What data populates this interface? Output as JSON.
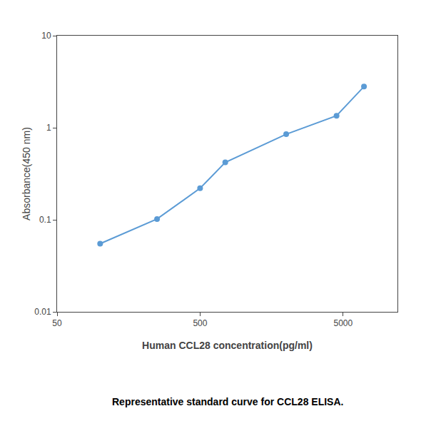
{
  "chart_data": {
    "type": "line",
    "x_label": "Human CCL28 concentration(pg/ml)",
    "y_label": "Absorbance(450 nm)",
    "annotations": [
      "Representative standard curve for CCL28 ELISA."
    ],
    "x": [
      100,
      250,
      500,
      750,
      2000,
      4500,
      7000
    ],
    "values": [
      0.055,
      0.102,
      0.22,
      0.42,
      0.85,
      1.35,
      2.8
    ],
    "color": "#5B9BD5",
    "marker": "circle",
    "line_style": "solid",
    "log": true,
    "xlim": [
      50,
      12000
    ],
    "ylim": [
      0.01,
      10
    ],
    "xticks": [
      50,
      500,
      5000
    ],
    "yticks": [
      0.01,
      0.1,
      1,
      10
    ],
    "grid": false
  }
}
